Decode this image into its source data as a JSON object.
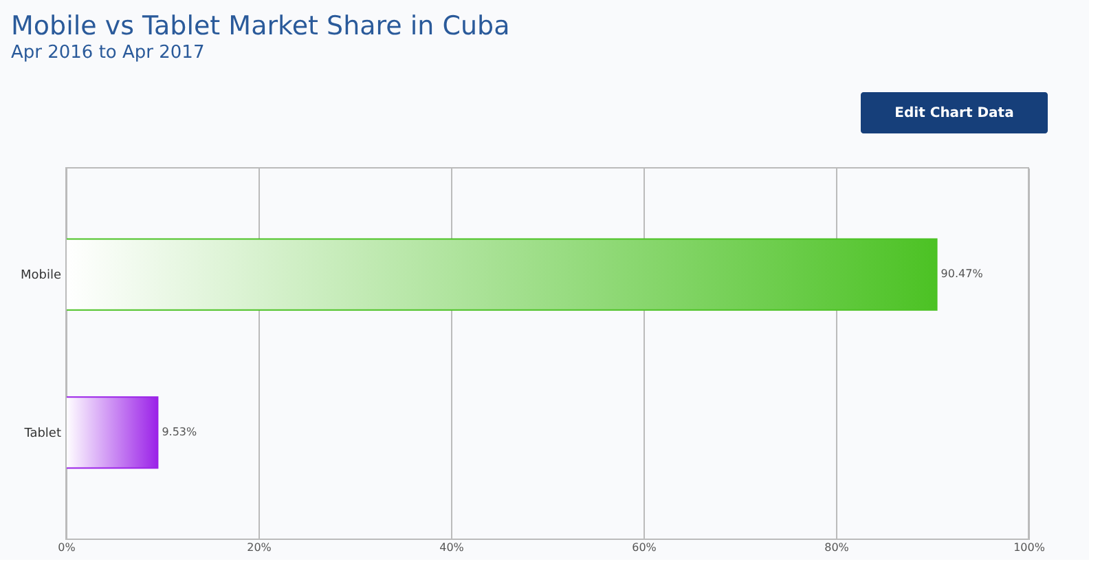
{
  "chart_data": {
    "type": "bar",
    "orientation": "horizontal",
    "title": "Mobile vs Tablet Market Share in Cuba",
    "subtitle": "Apr 2016 to Apr 2017",
    "annotations": [
      "Edit Chart Data"
    ],
    "categories": [
      "Mobile",
      "Tablet"
    ],
    "values": [
      90.47,
      9.53
    ],
    "colors": [
      "#4cc224",
      "#9b22e8"
    ],
    "value_labels": [
      "90.47%",
      "9.53%"
    ],
    "xlim": [
      0,
      100
    ],
    "xticks": [
      {
        "value": 0,
        "label": "0%"
      },
      {
        "value": 20,
        "label": "20%"
      },
      {
        "value": 40,
        "label": "40%"
      },
      {
        "value": 60,
        "label": "60%"
      },
      {
        "value": 80,
        "label": "80%"
      },
      {
        "value": 100,
        "label": "100%"
      }
    ],
    "grid": "x"
  }
}
